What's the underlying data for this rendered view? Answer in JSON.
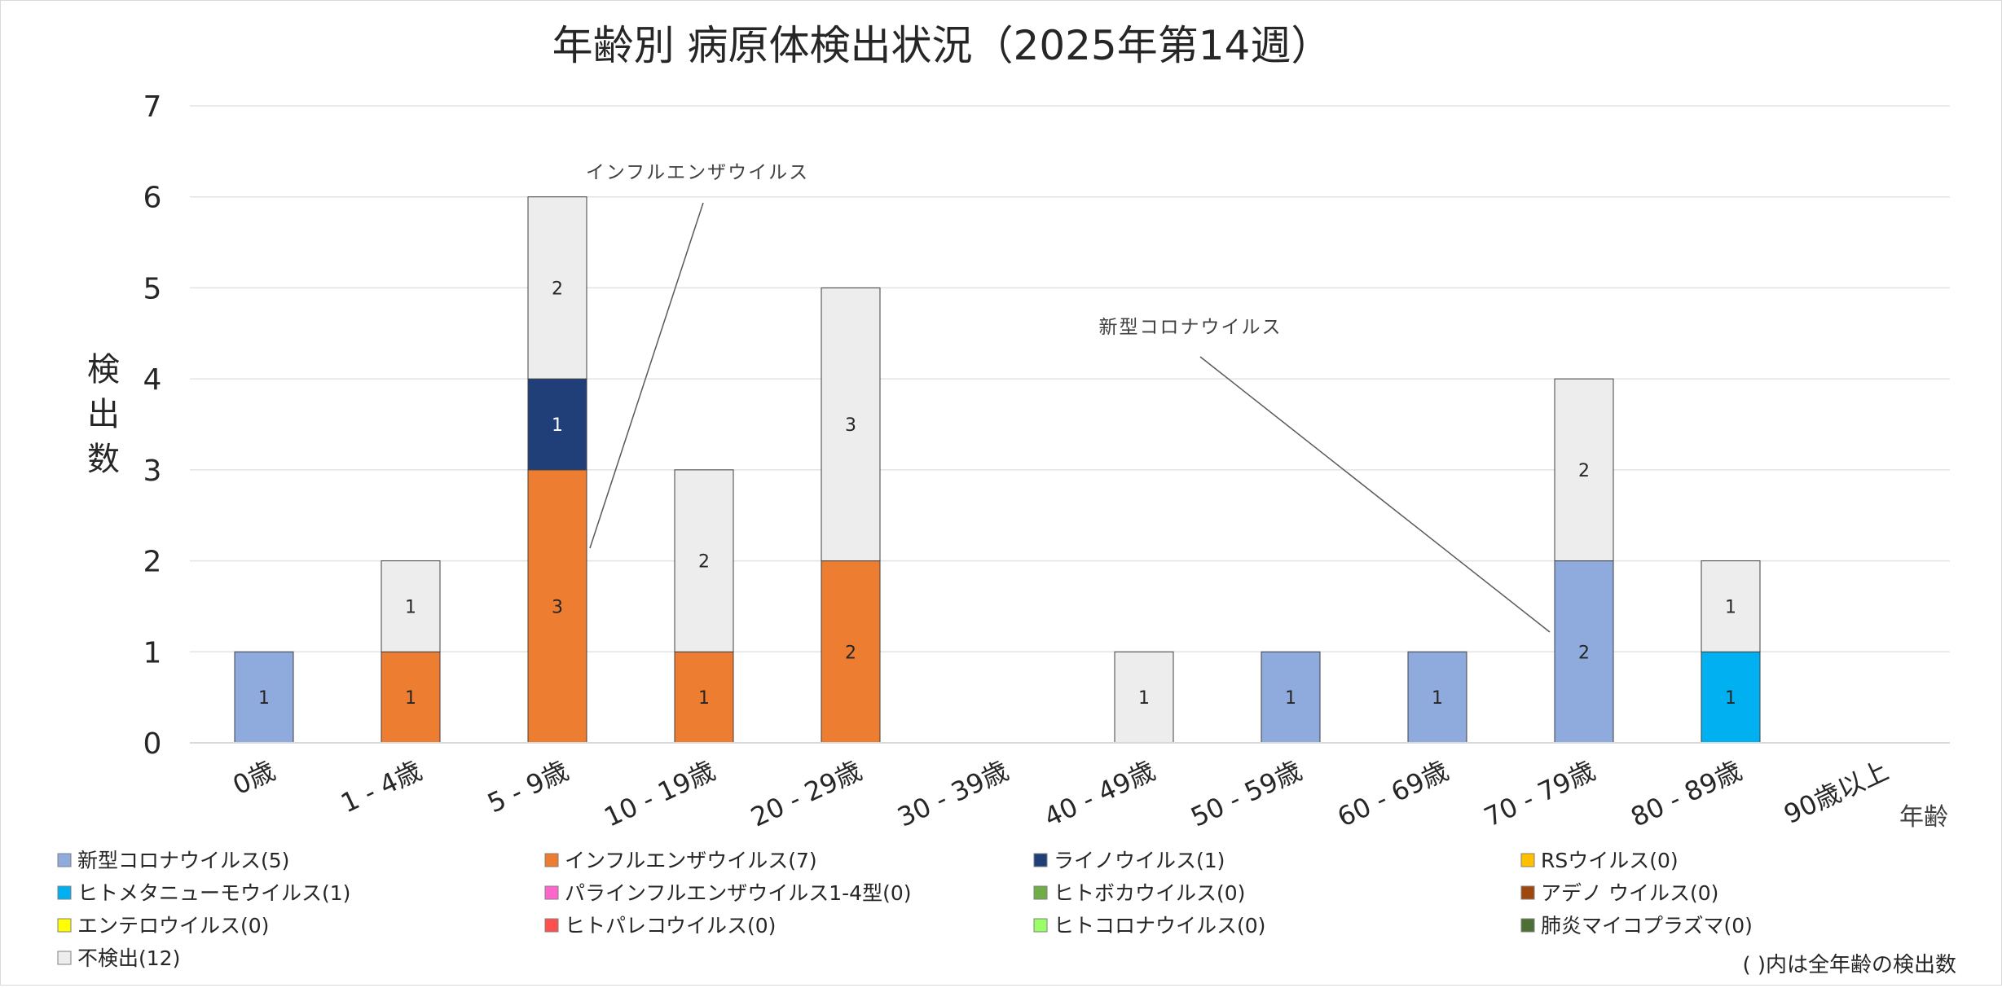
{
  "chart_data": {
    "type": "bar",
    "stacked": true,
    "title": "年齢別 病原体検出状況（2025年第14週）",
    "ylabel": "検出数",
    "xlabel": "年齢",
    "ylim": [
      0,
      7
    ],
    "yticks": [
      0,
      1,
      2,
      3,
      4,
      5,
      6,
      7
    ],
    "grid": true,
    "categories": [
      "0歳",
      "1 - 4歳",
      "5 - 9歳",
      "10 - 19歳",
      "20 - 29歳",
      "30 - 39歳",
      "40 - 49歳",
      "50 - 59歳",
      "60 - 69歳",
      "70 - 79歳",
      "80 - 89歳",
      "90歳以上"
    ],
    "series": [
      {
        "name": "新型コロナウイルス",
        "legend_label": "新型コロナウイルス(5)",
        "color": "#8faadc",
        "values": [
          1,
          0,
          0,
          0,
          0,
          0,
          0,
          1,
          1,
          2,
          0,
          0
        ]
      },
      {
        "name": "インフルエンザウイルス",
        "legend_label": "インフルエンザウイルス(7)",
        "color": "#ed7d31",
        "values": [
          0,
          1,
          3,
          1,
          2,
          0,
          0,
          0,
          0,
          0,
          0,
          0
        ]
      },
      {
        "name": "ライノウイルス",
        "legend_label": "ライノウイルス(1)",
        "color": "#203f78",
        "values": [
          0,
          0,
          1,
          0,
          0,
          0,
          0,
          0,
          0,
          0,
          0,
          0
        ]
      },
      {
        "name": "RSウイルス",
        "legend_label": "RSウイルス(0)",
        "color": "#ffc000",
        "values": [
          0,
          0,
          0,
          0,
          0,
          0,
          0,
          0,
          0,
          0,
          0,
          0
        ]
      },
      {
        "name": "ヒトメタニューモウイルス",
        "legend_label": "ヒトメタニューモウイルス(1)",
        "color": "#00b0f0",
        "values": [
          0,
          0,
          0,
          0,
          0,
          0,
          0,
          0,
          0,
          0,
          1,
          0
        ]
      },
      {
        "name": "パラインフルエンザウイルス1-4型",
        "legend_label": "パラインフルエンザウイルス1-4型(0)",
        "color": "#ff66cc",
        "values": [
          0,
          0,
          0,
          0,
          0,
          0,
          0,
          0,
          0,
          0,
          0,
          0
        ]
      },
      {
        "name": "ヒトボカウイルス",
        "legend_label": "ヒトボカウイルス(0)",
        "color": "#70ad47",
        "values": [
          0,
          0,
          0,
          0,
          0,
          0,
          0,
          0,
          0,
          0,
          0,
          0
        ]
      },
      {
        "name": "アデノウイルス",
        "legend_label": "アデノ ウイルス(0)",
        "color": "#9e480e",
        "values": [
          0,
          0,
          0,
          0,
          0,
          0,
          0,
          0,
          0,
          0,
          0,
          0
        ]
      },
      {
        "name": "エンテロウイルス",
        "legend_label": "エンテロウイルス(0)",
        "color": "#ffff00",
        "values": [
          0,
          0,
          0,
          0,
          0,
          0,
          0,
          0,
          0,
          0,
          0,
          0
        ]
      },
      {
        "name": "ヒトパレコウイルス",
        "legend_label": "ヒトパレコウイルス(0)",
        "color": "#ff5050",
        "values": [
          0,
          0,
          0,
          0,
          0,
          0,
          0,
          0,
          0,
          0,
          0,
          0
        ]
      },
      {
        "name": "ヒトコロナウイルス",
        "legend_label": "ヒトコロナウイルス(0)",
        "color": "#99ff66",
        "values": [
          0,
          0,
          0,
          0,
          0,
          0,
          0,
          0,
          0,
          0,
          0,
          0
        ]
      },
      {
        "name": "肺炎マイコプラズマ",
        "legend_label": "肺炎マイコプラズマ(0)",
        "color": "#4e6f34",
        "values": [
          0,
          0,
          0,
          0,
          0,
          0,
          0,
          0,
          0,
          0,
          0,
          0
        ]
      },
      {
        "name": "不検出",
        "legend_label": "不検出(12)",
        "color": "#ededed",
        "values": [
          0,
          1,
          2,
          2,
          3,
          0,
          1,
          0,
          0,
          2,
          1,
          0
        ]
      }
    ],
    "annotations": [
      {
        "text": "インフルエンザウイルス",
        "points_to": "5 - 9歳"
      },
      {
        "text": "新型コロナウイルス",
        "points_to": "70 - 79歳"
      }
    ],
    "footnote": "( )内は全年齢の検出数"
  }
}
